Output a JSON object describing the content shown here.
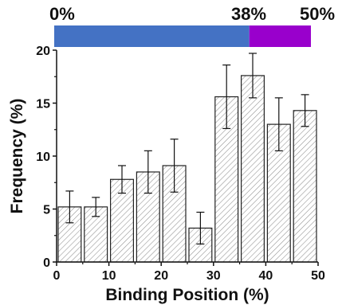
{
  "chart_data": {
    "type": "bar",
    "xlabel": "Binding Position (%)",
    "ylabel": "Frequency (%)",
    "xlim": [
      0,
      50
    ],
    "ylim": [
      0,
      20
    ],
    "xticks": [
      "0",
      "10",
      "20",
      "30",
      "40",
      "50"
    ],
    "yticks": [
      "0",
      "5",
      "10",
      "15",
      "20"
    ],
    "x": [
      2.5,
      7.5,
      12.5,
      17.5,
      22.5,
      27.5,
      32.5,
      37.5,
      42.5,
      47.5
    ],
    "values": [
      5.2,
      5.2,
      7.8,
      8.5,
      9.1,
      3.2,
      15.6,
      17.6,
      13.0,
      14.3
    ],
    "errors": [
      1.5,
      0.9,
      1.3,
      2.0,
      2.5,
      1.5,
      3.0,
      2.1,
      2.5,
      1.5
    ],
    "bar_fill": "hatched-gray",
    "grid": false,
    "legend": "none",
    "top_bar": {
      "labels": [
        "0%",
        "38%",
        "50%"
      ],
      "segments": [
        {
          "from": 0,
          "to": 38,
          "color": "#4472c4"
        },
        {
          "from": 38,
          "to": 50,
          "color": "#9900cc"
        }
      ]
    }
  }
}
